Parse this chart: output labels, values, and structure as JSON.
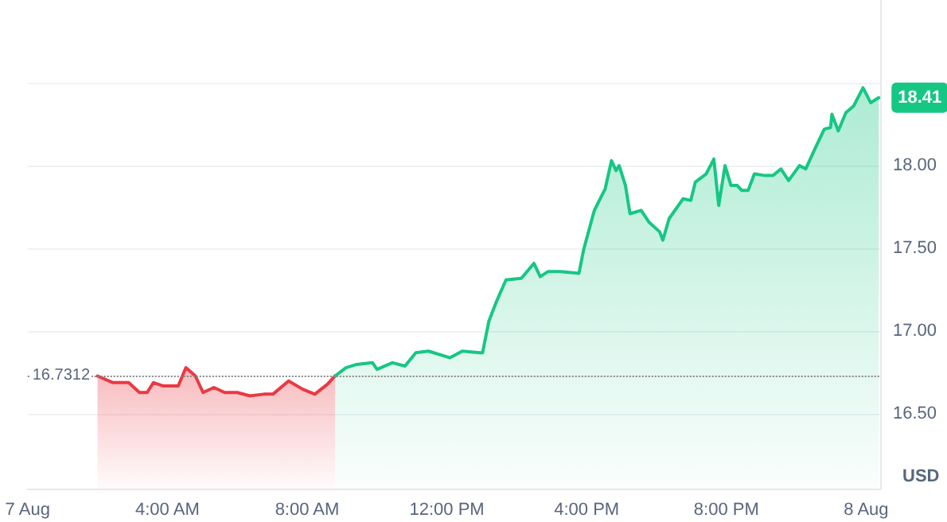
{
  "chart_data": {
    "type": "area",
    "ylabel": "USD",
    "xlim": [
      0,
      24.4
    ],
    "xticks": [
      {
        "value": 0,
        "label": "7 Aug"
      },
      {
        "value": 4,
        "label": "4:00 AM"
      },
      {
        "value": 8,
        "label": "8:00 AM"
      },
      {
        "value": 12,
        "label": "12:00 PM"
      },
      {
        "value": 16,
        "label": "4:00 PM"
      },
      {
        "value": 20,
        "label": "8:00 PM"
      },
      {
        "value": 24,
        "label": "8 Aug"
      }
    ],
    "ylim": [
      16.05,
      19.0
    ],
    "yticks": [
      {
        "value": 16.5,
        "label": "16.50"
      },
      {
        "value": 17,
        "label": "17.00"
      },
      {
        "value": 17.5,
        "label": "17.50"
      },
      {
        "value": 18,
        "label": "18.00"
      },
      {
        "value": 18.5,
        "label": null
      }
    ],
    "grid": "y",
    "marker": "none",
    "line_style": "solid",
    "series": [
      {
        "color": "#ea3943",
        "x": [
          2.0,
          2.44,
          2.89,
          3.2,
          3.42,
          3.6,
          3.87,
          4.31,
          4.53,
          4.8,
          5.02,
          5.33,
          5.64,
          6.0,
          6.36,
          6.76,
          7.02,
          7.47,
          7.87,
          8.22,
          8.58,
          8.8
        ],
        "values": [
          16.73,
          16.69,
          16.69,
          16.63,
          16.63,
          16.69,
          16.67,
          16.67,
          16.78,
          16.73,
          16.63,
          16.66,
          16.63,
          16.63,
          16.61,
          16.62,
          16.62,
          16.7,
          16.65,
          16.62,
          16.68,
          16.73
        ]
      },
      {
        "color": "#16c784",
        "x": [
          8.8,
          9.11,
          9.42,
          9.87,
          10.0,
          10.44,
          10.8,
          11.11,
          11.47,
          12.09,
          12.44,
          12.93,
          13.02,
          13.2,
          13.42,
          13.69,
          14.13,
          14.49,
          14.67,
          14.89,
          15.24,
          15.78,
          15.91,
          16.22,
          16.53,
          16.71,
          16.84,
          16.93,
          17.11,
          17.24,
          17.56,
          17.78,
          18.09,
          18.18,
          18.36,
          18.76,
          18.98,
          19.11,
          19.42,
          19.64,
          19.78,
          19.96,
          20.13,
          20.31,
          20.44,
          20.62,
          20.8,
          21.11,
          21.33,
          21.56,
          21.78,
          22.09,
          22.27,
          22.53,
          22.8,
          22.98,
          23.02,
          23.2,
          23.42,
          23.64,
          23.91,
          24.13,
          24.36
        ],
        "values": [
          16.73,
          16.78,
          16.8,
          16.81,
          16.77,
          16.81,
          16.79,
          16.87,
          16.88,
          16.84,
          16.88,
          16.87,
          16.87,
          17.06,
          17.18,
          17.31,
          17.32,
          17.41,
          17.33,
          17.36,
          17.36,
          17.35,
          17.49,
          17.73,
          17.86,
          18.03,
          17.97,
          18.0,
          17.88,
          17.71,
          17.73,
          17.66,
          17.6,
          17.55,
          17.68,
          17.8,
          17.79,
          17.9,
          17.95,
          18.04,
          17.76,
          18.0,
          17.88,
          17.88,
          17.85,
          17.85,
          17.95,
          17.94,
          17.94,
          17.98,
          17.91,
          18.0,
          17.98,
          18.1,
          18.22,
          18.23,
          18.31,
          18.21,
          18.32,
          18.36,
          18.47,
          18.38,
          18.41
        ]
      }
    ],
    "ref_lines": [
      {
        "axis": "y",
        "value": 16.7312,
        "label": "16.7312",
        "color": "#888888",
        "line_style": "dotted"
      }
    ],
    "annotations": [
      {
        "text": "18.41",
        "x": 24.36,
        "y": 18.41
      }
    ]
  }
}
